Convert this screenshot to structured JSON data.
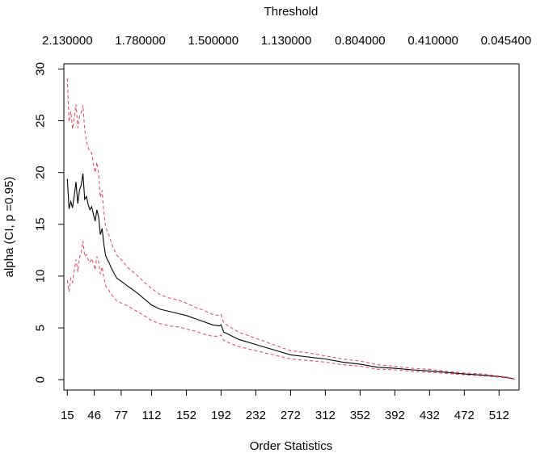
{
  "chart_data": {
    "type": "line",
    "title": "Threshold",
    "xlabel": "Order Statistics",
    "ylabel": "alpha (CI, p =0.95)",
    "xlim": [
      11,
      535
    ],
    "ylim": [
      -1,
      30.5
    ],
    "y_ticks": [
      0,
      5,
      10,
      15,
      20,
      25,
      30
    ],
    "x_ticks": [
      15,
      46,
      77,
      112,
      152,
      192,
      232,
      272,
      312,
      352,
      392,
      432,
      472,
      512
    ],
    "top_axis": {
      "positions": [
        15,
        99,
        183,
        267,
        352,
        436,
        520
      ],
      "labels": [
        "2.130000",
        "1.780000",
        "1.500000",
        "1.130000",
        "0.804000",
        "0.410000",
        "0.045400"
      ]
    },
    "grid": false,
    "series": [
      {
        "role": "estimate",
        "color": "#000000",
        "dash": "solid",
        "x": [
          15,
          17,
          19,
          21,
          23,
          25,
          27,
          29,
          31,
          33,
          35,
          37,
          39,
          41,
          43,
          45,
          47,
          49,
          51,
          53,
          55,
          57,
          59,
          61,
          63,
          65,
          68,
          72,
          77,
          85,
          95,
          105,
          112,
          122,
          132,
          142,
          152,
          162,
          172,
          182,
          190,
          192,
          195,
          200,
          212,
          232,
          252,
          272,
          292,
          312,
          332,
          352,
          372,
          392,
          412,
          432,
          452,
          472,
          492,
          512,
          522,
          530
        ],
        "y": [
          19.4,
          16.5,
          17.2,
          16.6,
          17.8,
          19.1,
          17.0,
          18.3,
          18.8,
          19.9,
          17.4,
          17.7,
          16.9,
          16.4,
          16.7,
          16.0,
          15.3,
          16.4,
          15.7,
          14.0,
          14.6,
          13.1,
          12.0,
          11.6,
          11.3,
          10.9,
          10.4,
          9.8,
          9.5,
          9.0,
          8.4,
          7.7,
          7.2,
          6.8,
          6.6,
          6.4,
          6.2,
          5.9,
          5.6,
          5.3,
          5.2,
          5.3,
          4.6,
          4.4,
          3.9,
          3.4,
          2.9,
          2.4,
          2.2,
          2.0,
          1.7,
          1.5,
          1.2,
          1.1,
          0.95,
          0.85,
          0.7,
          0.55,
          0.45,
          0.3,
          0.2,
          0.05
        ]
      },
      {
        "role": "upper-ci",
        "color": "#df536b",
        "dash": "dashed",
        "x": [
          15,
          17,
          19,
          21,
          23,
          25,
          27,
          29,
          31,
          33,
          35,
          37,
          39,
          41,
          43,
          45,
          47,
          49,
          51,
          53,
          55,
          57,
          59,
          61,
          63,
          65,
          68,
          72,
          77,
          85,
          95,
          105,
          112,
          122,
          132,
          142,
          152,
          162,
          172,
          182,
          190,
          192,
          195,
          200,
          212,
          232,
          252,
          272,
          292,
          312,
          332,
          352,
          372,
          392,
          412,
          432,
          452,
          472,
          492,
          512,
          522,
          530
        ],
        "y": [
          29.1,
          24.9,
          25.9,
          24.2,
          25.3,
          26.6,
          24.3,
          25.4,
          25.8,
          26.5,
          24.1,
          23.0,
          22.4,
          22.0,
          21.9,
          20.8,
          20.0,
          21.0,
          19.9,
          17.6,
          18.3,
          16.2,
          14.8,
          14.3,
          13.9,
          13.4,
          12.7,
          12.0,
          11.6,
          10.8,
          10.1,
          9.3,
          8.8,
          8.2,
          7.9,
          7.7,
          7.4,
          7.0,
          6.7,
          6.3,
          6.2,
          6.3,
          5.5,
          5.2,
          4.6,
          4.0,
          3.4,
          2.8,
          2.6,
          2.3,
          2.0,
          1.8,
          1.45,
          1.3,
          1.1,
          1.0,
          0.8,
          0.65,
          0.55,
          0.35,
          0.25,
          0.06
        ]
      },
      {
        "role": "lower-ci",
        "color": "#df536b",
        "dash": "dashed",
        "x": [
          15,
          17,
          19,
          21,
          23,
          25,
          27,
          29,
          31,
          33,
          35,
          37,
          39,
          41,
          43,
          45,
          47,
          49,
          51,
          53,
          55,
          57,
          59,
          61,
          63,
          65,
          68,
          72,
          77,
          85,
          95,
          105,
          112,
          122,
          132,
          142,
          152,
          162,
          172,
          182,
          190,
          192,
          195,
          200,
          212,
          232,
          252,
          272,
          292,
          312,
          332,
          352,
          372,
          392,
          412,
          432,
          452,
          472,
          492,
          512,
          522,
          530
        ],
        "y": [
          9.6,
          8.5,
          9.8,
          9.4,
          10.6,
          11.6,
          10.4,
          11.8,
          12.3,
          13.4,
          11.9,
          12.1,
          11.6,
          11.3,
          11.7,
          11.2,
          10.6,
          11.9,
          11.4,
          10.2,
          10.9,
          9.9,
          9.1,
          8.8,
          8.6,
          8.3,
          8.0,
          7.6,
          7.4,
          7.1,
          6.6,
          6.1,
          5.7,
          5.4,
          5.2,
          5.1,
          4.9,
          4.7,
          4.4,
          4.2,
          4.2,
          4.3,
          3.8,
          3.6,
          3.2,
          2.8,
          2.4,
          2.0,
          1.85,
          1.7,
          1.45,
          1.3,
          1.0,
          0.95,
          0.8,
          0.72,
          0.6,
          0.47,
          0.38,
          0.25,
          0.16,
          0.04
        ]
      }
    ]
  }
}
